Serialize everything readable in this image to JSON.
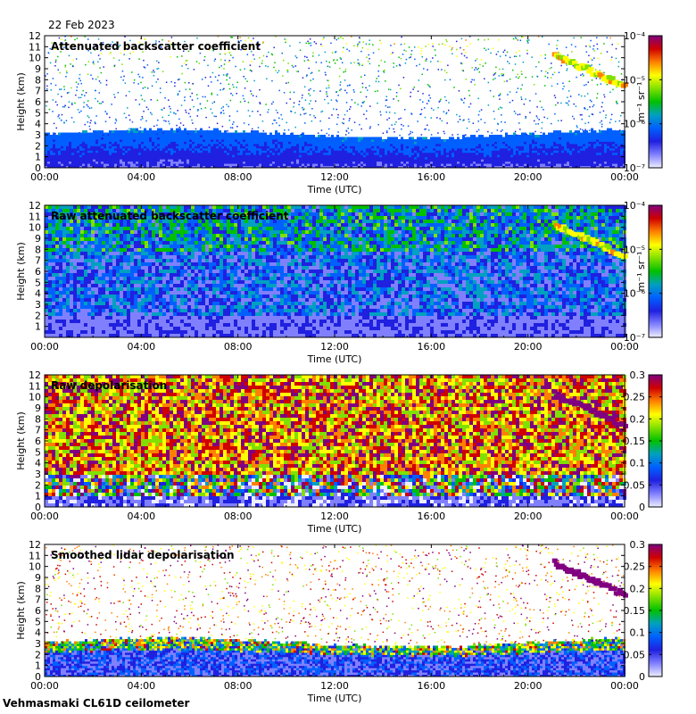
{
  "date": "22 Feb 2023",
  "footer": "Vehmasmaki CL61D ceilometer",
  "x_tick_labels": [
    "00:00",
    "04:00",
    "08:00",
    "12:00",
    "16:00",
    "20:00",
    "00:00"
  ],
  "xlabel": "Time (UTC)",
  "ylabel": "Height (km)",
  "colors": {
    "colormap": [
      "#eeeeff",
      "#8080ff",
      "#2020e0",
      "#0060ff",
      "#00a0c0",
      "#00c000",
      "#80e000",
      "#ffff00",
      "#ff8000",
      "#d00000",
      "#800080"
    ]
  },
  "chart_data": [
    {
      "type": "heatmap",
      "title": "Attenuated backscatter coefficient",
      "xlabel": "Time (UTC)",
      "ylabel": "Height (km)",
      "xlim": [
        0,
        24
      ],
      "ylim": [
        0,
        12
      ],
      "yticks": [
        0,
        1,
        2,
        3,
        4,
        5,
        6,
        7,
        8,
        9,
        10,
        11,
        12
      ],
      "colorbar": {
        "scale": "log",
        "range": [
          1e-07,
          0.0001
        ],
        "unit_label": "m⁻¹ sr⁻¹",
        "tick_labels": [
          "10⁻⁷",
          "10⁻⁶",
          "10⁻⁵",
          "10⁻⁴"
        ]
      },
      "features": {
        "boundary_layer_top_km": 3,
        "cloud_hours": [
          21,
          24
        ],
        "cloud_height_km": [
          7.5,
          10.5
        ]
      }
    },
    {
      "type": "heatmap",
      "title": "Raw attenuated backscatter coefficient",
      "xlabel": "Time (UTC)",
      "ylabel": "Height (km)",
      "xlim": [
        0,
        24
      ],
      "ylim": [
        0,
        12
      ],
      "yticks": [
        1,
        2,
        3,
        4,
        5,
        6,
        7,
        8,
        9,
        10,
        11,
        12
      ],
      "colorbar": {
        "scale": "log",
        "range": [
          1e-07,
          0.0001
        ],
        "unit_label": "m⁻¹ sr⁻¹",
        "tick_labels": [
          "10⁻⁷",
          "10⁻⁶",
          "10⁻⁵",
          "10⁻⁴"
        ]
      },
      "features": {
        "cloud_hours": [
          21,
          24
        ],
        "cloud_height_km": [
          7.5,
          10.5
        ]
      }
    },
    {
      "type": "heatmap",
      "title": "Raw depolarisation",
      "xlabel": "Time (UTC)",
      "ylabel": "Height (km)",
      "xlim": [
        0,
        24
      ],
      "ylim": [
        0,
        12
      ],
      "yticks": [
        0,
        1,
        2,
        3,
        4,
        5,
        6,
        7,
        8,
        9,
        10,
        11,
        12
      ],
      "colorbar": {
        "scale": "linear",
        "range": [
          0,
          0.3
        ],
        "tick_labels": [
          "0",
          "0.05",
          "0.1",
          "0.15",
          "0.2",
          "0.25",
          "0.3"
        ]
      },
      "features": {
        "cloud_hours": [
          21,
          24
        ],
        "cloud_height_km": [
          7.5,
          10.5
        ]
      }
    },
    {
      "type": "heatmap",
      "title": "Smoothed lidar depolarisation",
      "xlabel": "Time (UTC)",
      "ylabel": "Height (km)",
      "xlim": [
        0,
        24
      ],
      "ylim": [
        0,
        12
      ],
      "yticks": [
        0,
        1,
        2,
        3,
        4,
        5,
        6,
        7,
        8,
        9,
        10,
        11,
        12
      ],
      "colorbar": {
        "scale": "linear",
        "range": [
          0,
          0.3
        ],
        "tick_labels": [
          "0",
          "0.05",
          "0.1",
          "0.15",
          "0.2",
          "0.25",
          "0.3"
        ]
      },
      "features": {
        "boundary_layer_top_km": 3,
        "cloud_hours": [
          21,
          24
        ],
        "cloud_height_km": [
          7.5,
          10.5
        ]
      }
    }
  ]
}
